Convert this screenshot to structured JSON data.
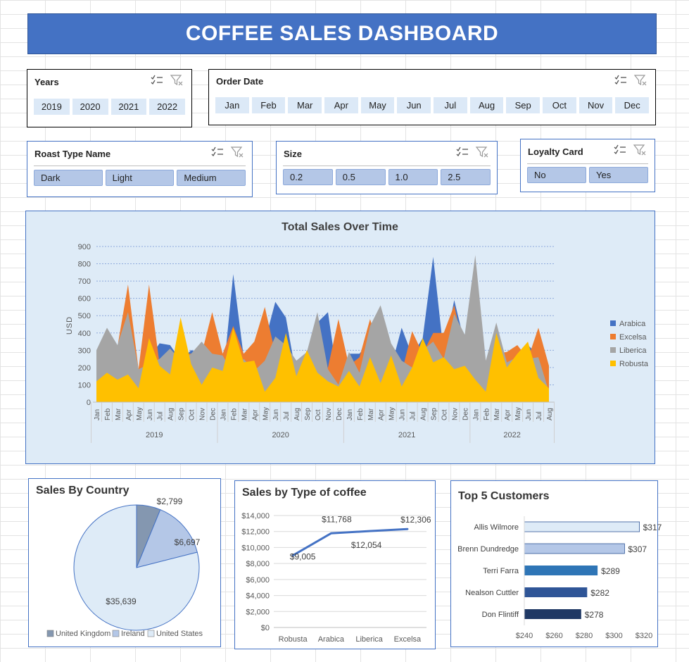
{
  "dashboard": {
    "title": "COFFEE SALES DASHBOARD"
  },
  "slicers": {
    "years": {
      "title": "Years",
      "items": [
        "2019",
        "2020",
        "2021",
        "2022"
      ]
    },
    "order_date": {
      "title": "Order Date",
      "items": [
        "Jan",
        "Feb",
        "Mar",
        "Apr",
        "May",
        "Jun",
        "Jul",
        "Aug",
        "Sep",
        "Oct",
        "Nov",
        "Dec"
      ]
    },
    "roast": {
      "title": "Roast Type Name",
      "items": [
        "Dark",
        "Light",
        "Medium"
      ]
    },
    "size": {
      "title": "Size",
      "items": [
        "0.2",
        "0.5",
        "1.0",
        "2.5"
      ]
    },
    "loyalty": {
      "title": "Loyalty Card",
      "items": [
        "No",
        "Yes"
      ]
    }
  },
  "colors": {
    "arabica": "#4472c4",
    "excelsa": "#ed7d31",
    "liberica": "#a5a5a5",
    "robusta": "#ffc000",
    "pie_uk": "#8497b0",
    "pie_ie": "#b4c7e7",
    "pie_us": "#deebf7",
    "cust": [
      "#deebf7",
      "#b4c7e7",
      "#2e75b6",
      "#2f5597",
      "#1f3864"
    ]
  },
  "chart_data": [
    {
      "type": "area",
      "title": "Total Sales Over Time",
      "ylabel": "USD",
      "ylim": [
        0,
        900
      ],
      "yticks": [
        0,
        100,
        200,
        300,
        400,
        500,
        600,
        700,
        800,
        900
      ],
      "months": [
        "Jan",
        "Feb",
        "Mar",
        "Apr",
        "May",
        "Jun",
        "Jul",
        "Aug",
        "Sep",
        "Oct",
        "Nov",
        "Dec",
        "Jan",
        "Feb",
        "Mar",
        "Apr",
        "May",
        "Jun",
        "Jul",
        "Aug",
        "Sep",
        "Oct",
        "Nov",
        "Dec",
        "Jan",
        "Feb",
        "Mar",
        "Apr",
        "May",
        "Jun",
        "Jul",
        "Aug",
        "Sep",
        "Oct",
        "Nov",
        "Dec",
        "Jan",
        "Feb",
        "Mar",
        "Apr",
        "May",
        "Jun",
        "Jul",
        "Aug"
      ],
      "years": [
        {
          "label": "2019",
          "start": 0,
          "count": 12
        },
        {
          "label": "2020",
          "start": 12,
          "count": 12
        },
        {
          "label": "2021",
          "start": 24,
          "count": 12
        },
        {
          "label": "2022",
          "start": 36,
          "count": 8
        }
      ],
      "series": [
        {
          "name": "Arabica",
          "color_key": "arabica",
          "values": [
            190,
            250,
            310,
            410,
            190,
            250,
            340,
            330,
            240,
            300,
            280,
            260,
            120,
            740,
            260,
            290,
            350,
            580,
            490,
            150,
            280,
            460,
            520,
            100,
            280,
            280,
            360,
            210,
            200,
            430,
            270,
            370,
            840,
            280,
            590,
            340,
            280,
            100,
            380,
            160,
            270,
            330,
            270,
            90
          ]
        },
        {
          "name": "Excelsa",
          "color_key": "excelsa",
          "values": [
            260,
            200,
            320,
            680,
            190,
            680,
            220,
            180,
            280,
            280,
            280,
            520,
            280,
            440,
            280,
            350,
            550,
            280,
            290,
            140,
            300,
            210,
            200,
            480,
            210,
            260,
            480,
            290,
            210,
            170,
            410,
            280,
            400,
            400,
            560,
            280,
            200,
            120,
            280,
            290,
            330,
            250,
            430,
            210
          ]
        },
        {
          "name": "Liberica",
          "color_key": "liberica",
          "values": [
            300,
            430,
            330,
            520,
            190,
            220,
            250,
            310,
            240,
            280,
            350,
            280,
            270,
            160,
            250,
            180,
            240,
            380,
            330,
            240,
            290,
            520,
            190,
            100,
            290,
            170,
            440,
            560,
            340,
            240,
            200,
            300,
            350,
            250,
            510,
            390,
            850,
            240,
            460,
            230,
            260,
            250,
            260,
            60
          ]
        },
        {
          "name": "Robusta",
          "color_key": "robusta",
          "values": [
            120,
            170,
            130,
            160,
            80,
            370,
            210,
            160,
            490,
            220,
            100,
            200,
            180,
            430,
            230,
            240,
            60,
            140,
            400,
            150,
            300,
            170,
            120,
            90,
            180,
            90,
            260,
            110,
            270,
            90,
            200,
            370,
            230,
            260,
            190,
            210,
            130,
            60,
            400,
            200,
            280,
            350,
            140,
            80
          ]
        }
      ]
    },
    {
      "type": "pie",
      "title": "Sales By Country",
      "slices": [
        {
          "label": "United Kingdom",
          "value": 2799,
          "text": "$2,799",
          "color_key": "pie_uk"
        },
        {
          "label": "Ireland",
          "value": 6697,
          "text": "$6,697",
          "color_key": "pie_ie"
        },
        {
          "label": "United States",
          "value": 35639,
          "text": "$35,639",
          "color_key": "pie_us"
        }
      ]
    },
    {
      "type": "line",
      "title": "Sales by Type of coffee",
      "categories": [
        "Robusta",
        "Arabica",
        "Liberica",
        "Excelsa"
      ],
      "values": [
        9005,
        11768,
        12054,
        12306
      ],
      "labels": [
        "$9,005",
        "$11,768",
        "$12,054",
        "$12,306"
      ],
      "ylim": [
        0,
        14000
      ],
      "yticks": [
        0,
        2000,
        4000,
        6000,
        8000,
        10000,
        12000,
        14000
      ],
      "ytick_labels": [
        "$0",
        "$2,000",
        "$4,000",
        "$6,000",
        "$8,000",
        "$10,000",
        "$12,000",
        "$14,000"
      ]
    },
    {
      "type": "bar",
      "title": "Top 5 Customers",
      "categories": [
        "Allis Wilmore",
        "Brenn Dundredge",
        "Terri Farra",
        "Nealson Cuttler",
        "Don Flintiff"
      ],
      "values": [
        317,
        307,
        289,
        282,
        278
      ],
      "labels": [
        "$317",
        "$307",
        "$289",
        "$282",
        "$278"
      ],
      "xlim": [
        240,
        320
      ],
      "xticks": [
        240,
        260,
        280,
        300,
        320
      ],
      "xtick_labels": [
        "$240",
        "$260",
        "$280",
        "$300",
        "$320"
      ]
    }
  ]
}
